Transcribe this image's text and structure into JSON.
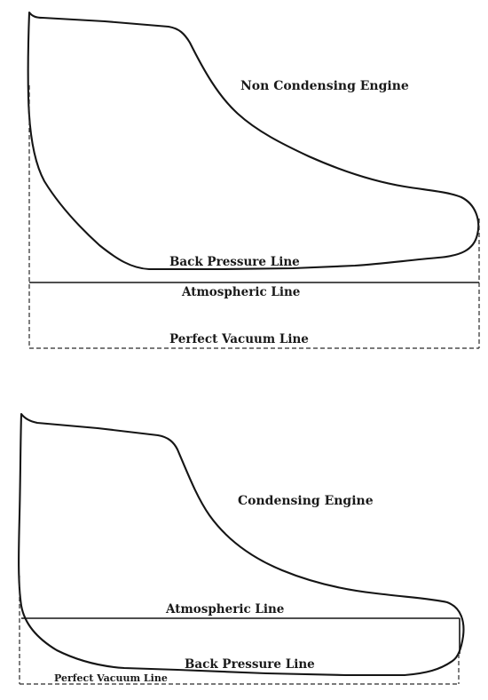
{
  "diagrams": [
    {
      "title": "Non Condensing Engine",
      "back_pressure_label": "Back Pressure Line",
      "atmospheric_label": "Atmospheric Line",
      "vacuum_label": "Perfect Vacuum Line"
    },
    {
      "title": "Condensing Engine",
      "atmospheric_label": "Atmospheric Line",
      "back_pressure_label": "Back Pressure Line",
      "vacuum_label": "Perfect Vacuum Line"
    }
  ]
}
